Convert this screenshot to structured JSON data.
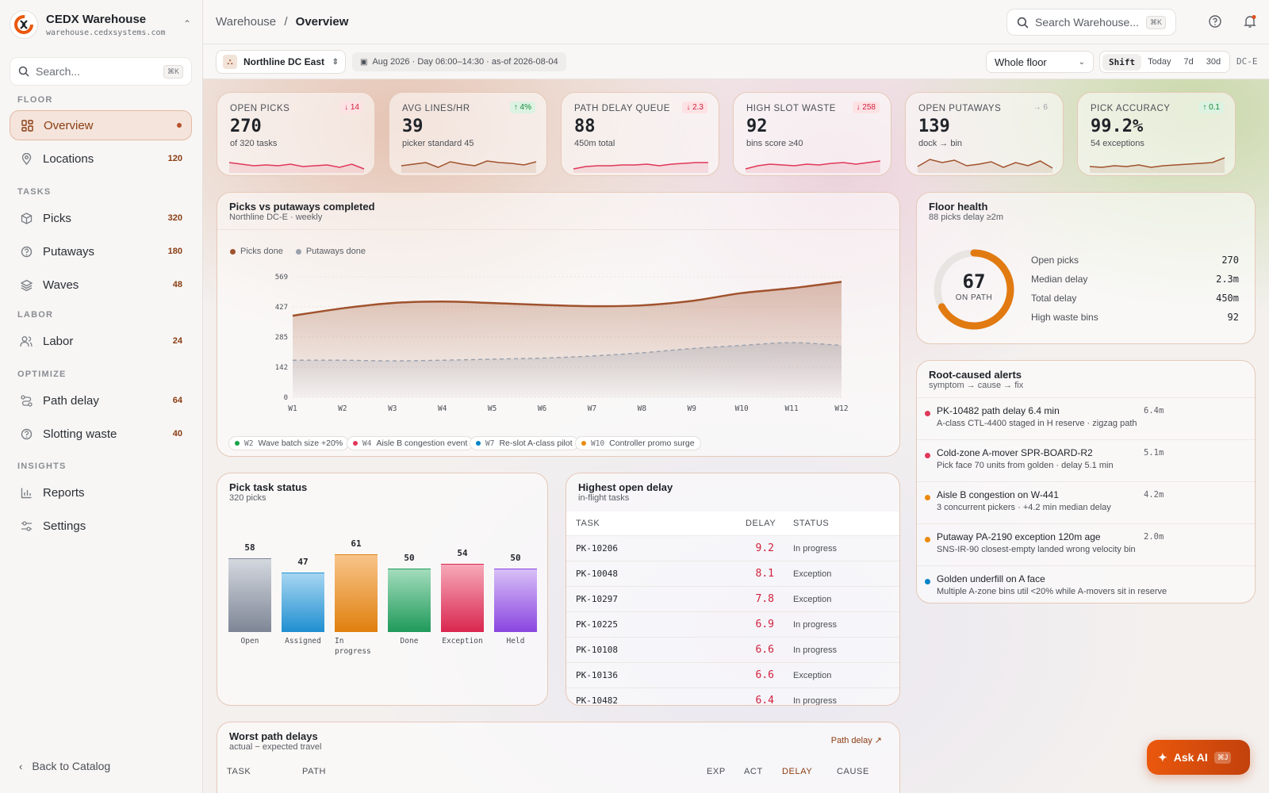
{
  "app": {
    "name": "CEDX Warehouse",
    "url": "warehouse.cedxsystems.com",
    "search_placeholder": "Search...",
    "search_kbd": "⌘K"
  },
  "sidebar": {
    "sections": [
      "FLOOR",
      "TASKS",
      "LABOR",
      "OPTIMIZE",
      "INSIGHTS"
    ],
    "items": [
      {
        "label": "Overview",
        "count": ""
      },
      {
        "label": "Locations",
        "count": "120"
      },
      {
        "label": "Picks",
        "count": "320"
      },
      {
        "label": "Putaways",
        "count": "180"
      },
      {
        "label": "Waves",
        "count": "48"
      },
      {
        "label": "Labor",
        "count": "24"
      },
      {
        "label": "Path delay",
        "count": "64"
      },
      {
        "label": "Slotting waste",
        "count": "40"
      },
      {
        "label": "Reports",
        "count": ""
      },
      {
        "label": "Settings",
        "count": ""
      }
    ],
    "back": "Back to Catalog"
  },
  "top": {
    "crumb_root": "Warehouse",
    "crumb_sep": "/",
    "crumb_current": "Overview",
    "search_placeholder": "Search Warehouse...",
    "search_kbd": "⌘K"
  },
  "filters": {
    "site": "Northline DC East",
    "period": "Aug 2026 · Day 06:00–14:30 · as-of 2026-08-04",
    "zone": "Whole floor",
    "ranges": [
      "Shift",
      "Today",
      "7d",
      "30d"
    ],
    "active_range": "Shift",
    "site_code": "DC-E"
  },
  "kpis": [
    {
      "label": "OPEN PICKS",
      "badge": "↓ 14",
      "value": "270",
      "sub": "of 320 tasks",
      "trend": "red",
      "color": "#e0385a"
    },
    {
      "label": "AVG LINES/HR",
      "badge": "↑ 4%",
      "value": "39",
      "sub": "picker standard 45",
      "trend": "green",
      "color": "#a0522d"
    },
    {
      "label": "PATH DELAY QUEUE",
      "badge": "↓ 2.3",
      "value": "88",
      "sub": "450m total",
      "trend": "red",
      "color": "#e0385a"
    },
    {
      "label": "HIGH SLOT WASTE",
      "badge": "↓ 258",
      "value": "92",
      "sub": "bins score ≥40",
      "trend": "red",
      "color": "#e0385a"
    },
    {
      "label": "OPEN PUTAWAYS",
      "badge": "→ 6",
      "value": "139",
      "sub": "dock → bin",
      "trend": "gray",
      "color": "#a0522d"
    },
    {
      "label": "PICK ACCURACY",
      "badge": "↑ 0.1",
      "value": "99.2%",
      "sub": "54 exceptions",
      "trend": "green",
      "color": "#a0522d"
    }
  ],
  "main_chart": {
    "title": "Picks vs putaways completed",
    "subtitle": "Northline DC-E · weekly"
  },
  "chart_data": {
    "type": "area",
    "categories": [
      "W1",
      "W2",
      "W3",
      "W4",
      "W5",
      "W6",
      "W7",
      "W8",
      "W9",
      "W10",
      "W11",
      "W12"
    ],
    "series": [
      {
        "name": "Picks done",
        "values": [
          385,
          420,
          445,
          452,
          445,
          436,
          430,
          434,
          455,
          492,
          515,
          545
        ],
        "color": "#a0522d"
      },
      {
        "name": "Putaways done",
        "values": [
          175,
          175,
          172,
          175,
          180,
          185,
          195,
          210,
          230,
          245,
          258,
          245
        ],
        "color": "#9aa0ad"
      }
    ],
    "ylim": [
      0,
      569
    ],
    "yticks": [
      "0",
      "142",
      "285",
      "427",
      "569"
    ],
    "events": [
      {
        "week": "W2",
        "label": "Wave batch size +20%",
        "color": "#16a34a"
      },
      {
        "week": "W4",
        "label": "Aisle B congestion event",
        "color": "#e0385a"
      },
      {
        "week": "W7",
        "label": "Re-slot A-class pilot",
        "color": "#0284c7"
      },
      {
        "week": "W10",
        "label": "Controller promo surge",
        "color": "#ea8a0c"
      }
    ]
  },
  "floor_health": {
    "title": "Floor health",
    "subtitle": "88 picks delay ≥2m",
    "score": "67",
    "score_label": "ON PATH",
    "score_fraction": 0.67,
    "rows": [
      {
        "label": "Open picks",
        "value": "270"
      },
      {
        "label": "Median delay",
        "value": "2.3m"
      },
      {
        "label": "Total delay",
        "value": "450m"
      },
      {
        "label": "High waste bins",
        "value": "92"
      }
    ]
  },
  "alerts": {
    "title": "Root-caused alerts",
    "subtitle": "symptom → cause → fix",
    "items": [
      {
        "title": "PK-10482 path delay 6.4 min",
        "metric": "6.4m",
        "sub": "A-class CTL-4400 staged in H reserve · zigzag path",
        "color": "#e0385a"
      },
      {
        "title": "Cold-zone A-mover SPR-BOARD-R2",
        "metric": "5.1m",
        "sub": "Pick face 70 units from golden · delay 5.1 min",
        "color": "#e0385a"
      },
      {
        "title": "Aisle B congestion on W-441",
        "metric": "4.2m",
        "sub": "3 concurrent pickers · +4.2 min median delay",
        "color": "#ea8a0c"
      },
      {
        "title": "Putaway PA-2190 exception 120m age",
        "metric": "2.0m",
        "sub": "SNS-IR-90 closest-empty landed wrong velocity bin",
        "color": "#ea8a0c"
      },
      {
        "title": "Golden underfill on A face",
        "metric": "",
        "sub": "Multiple A-zone bins util <20% while A-movers sit in reserve",
        "color": "#0284c7"
      }
    ]
  },
  "pick_status": {
    "title": "Pick task status",
    "subtitle": "320 picks",
    "bars": [
      {
        "label": "Open",
        "value": 58,
        "top": "#d4d8df",
        "bot": "#7e8696"
      },
      {
        "label": "Assigned",
        "value": 47,
        "top": "#a7d6f2",
        "bot": "#1f8fd0"
      },
      {
        "label": "In progress",
        "value": 61,
        "top": "#f8c48a",
        "bot": "#e0800e"
      },
      {
        "label": "Done",
        "value": 50,
        "top": "#a3dcbc",
        "bot": "#1f9a5a"
      },
      {
        "label": "Exception",
        "value": 54,
        "top": "#f7a9b9",
        "bot": "#d9264f"
      },
      {
        "label": "Held",
        "value": 50,
        "top": "#d7bff7",
        "bot": "#8a45e0"
      }
    ]
  },
  "open_delay": {
    "title": "Highest open delay",
    "subtitle": "in-flight tasks",
    "headers": [
      "TASK",
      "DELAY",
      "STATUS"
    ],
    "rows": [
      {
        "task": "PK-10206",
        "delay": "9.2",
        "status": "In progress"
      },
      {
        "task": "PK-10048",
        "delay": "8.1",
        "status": "Exception"
      },
      {
        "task": "PK-10297",
        "delay": "7.8",
        "status": "Exception"
      },
      {
        "task": "PK-10225",
        "delay": "6.9",
        "status": "In progress"
      },
      {
        "task": "PK-10108",
        "delay": "6.6",
        "status": "In progress"
      },
      {
        "task": "PK-10136",
        "delay": "6.6",
        "status": "Exception"
      },
      {
        "task": "PK-10482",
        "delay": "6.4",
        "status": "In progress"
      }
    ]
  },
  "worst": {
    "title": "Worst path delays",
    "subtitle": "actual − expected travel",
    "link": "Path delay",
    "headers": [
      "TASK",
      "PATH",
      "EXP",
      "ACT",
      "DELAY",
      "CAUSE"
    ]
  },
  "ask_ai": {
    "label": "Ask AI",
    "kbd": "⌘J"
  }
}
